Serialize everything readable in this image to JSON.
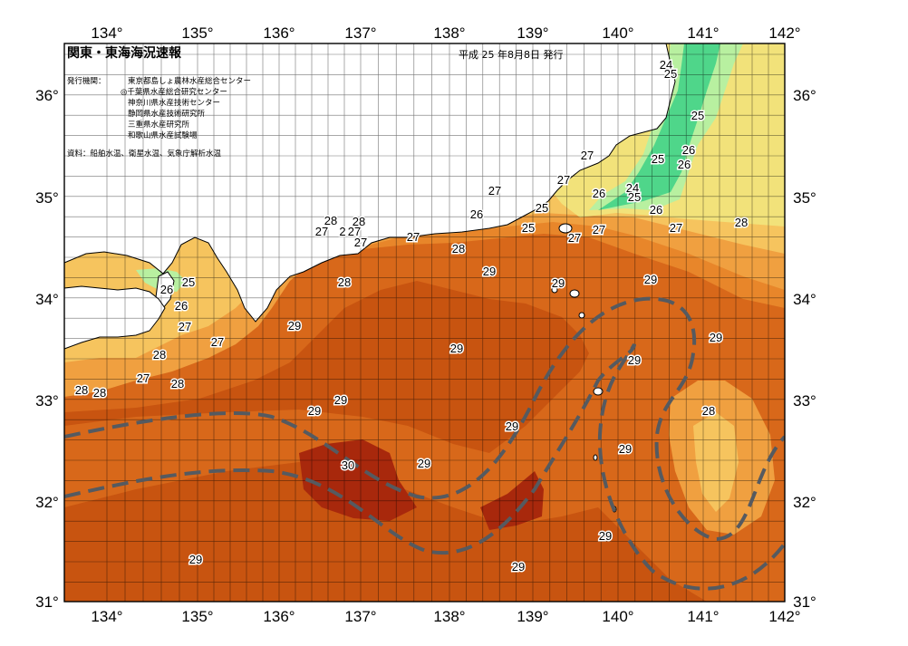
{
  "title": "関東・東海海況速報",
  "issue_date": "平成 25 年8月8日 発行",
  "issuer_label": "発行機関：",
  "issuers": [
    "東京都島しょ農林水産総合センター",
    "◎千葉県水産総合研究センター",
    "神奈川県水産技術センター",
    "静岡県水産技術研究所",
    "三重県水産研究所",
    "和歌山県水産試験場"
  ],
  "source": "資料：船舶水温、衛星水温、気象庁解析水温",
  "lon_ticks": [
    "134°",
    "135°",
    "136°",
    "137°",
    "138°",
    "139°",
    "140°",
    "141°",
    "142°"
  ],
  "lat_ticks": [
    "36°",
    "35°",
    "34°",
    "33°",
    "32°",
    "31°"
  ],
  "colors": {
    "c24": "#4fd68a",
    "c25": "#b8f0a0",
    "c26": "#f2e27a",
    "c27": "#f6c45e",
    "c28": "#f0a040",
    "c285": "#e8862a",
    "c29": "#d8681a",
    "c295": "#c85410",
    "c30": "#a8280c",
    "land": "#ffffff",
    "current": "#555a60"
  },
  "contour_labels": [
    "24",
    "25",
    "25",
    "26",
    "25",
    "26",
    "27",
    "27",
    "26",
    "24",
    "25",
    "26",
    "27",
    "27",
    "28",
    "27",
    "28",
    "28",
    "27",
    "2",
    "27",
    "27",
    "26",
    "25",
    "25",
    "27",
    "27",
    "28",
    "29",
    "28",
    "29",
    "29",
    "26",
    "25",
    "26",
    "27",
    "27",
    "28",
    "27",
    "28",
    "28",
    "29",
    "29",
    "29",
    "29",
    "29",
    "30",
    "29",
    "29",
    "29",
    "29",
    "29",
    "28",
    "29",
    "29",
    "29",
    "28"
  ]
}
